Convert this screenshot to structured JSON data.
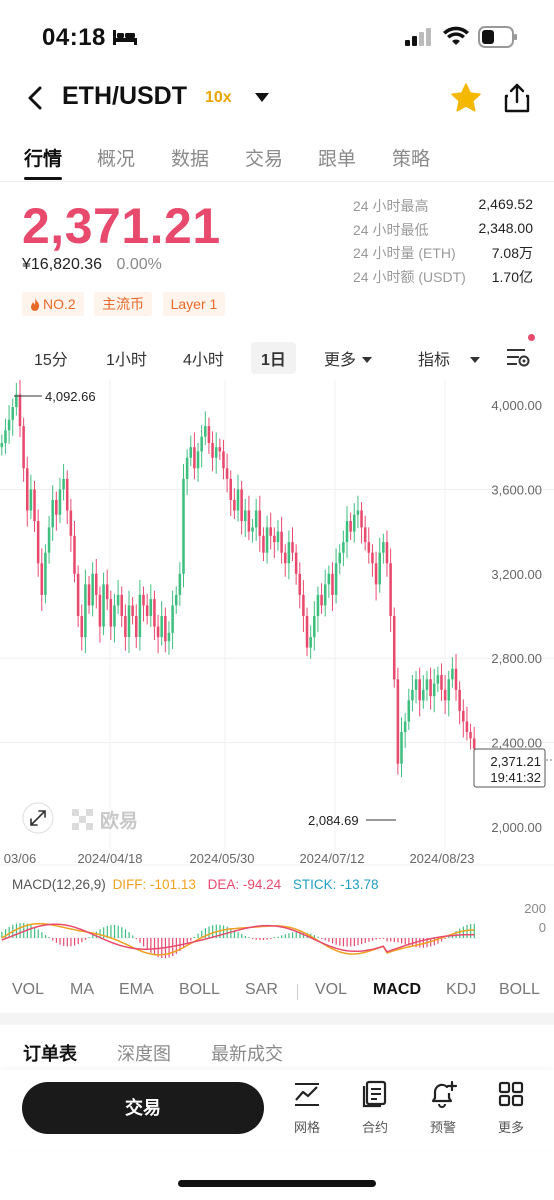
{
  "status_bar": {
    "time": "04:18"
  },
  "header": {
    "pair": "ETH/USDT",
    "leverage": "10x"
  },
  "main_tabs": [
    {
      "label": "行情",
      "active": true
    },
    {
      "label": "概况"
    },
    {
      "label": "数据"
    },
    {
      "label": "交易"
    },
    {
      "label": "跟单"
    },
    {
      "label": "策略"
    }
  ],
  "price": {
    "last": "2,371.21",
    "cny": "¥16,820.36",
    "change": "0.00%"
  },
  "stats": [
    {
      "label": "24 小时最高",
      "value": "2,469.52"
    },
    {
      "label": "24 小时最低",
      "value": "2,348.00"
    },
    {
      "label": "24 小时量 (ETH)",
      "value": "7.08万"
    },
    {
      "label": "24 小时额 (USDT)",
      "value": "1.70亿"
    }
  ],
  "tags": [
    "NO.2",
    "主流币",
    "Layer 1"
  ],
  "intervals": [
    {
      "label": "15分"
    },
    {
      "label": "1小时"
    },
    {
      "label": "4小时"
    },
    {
      "label": "1日",
      "active": true
    },
    {
      "label": "更多"
    },
    {
      "label": "指标"
    }
  ],
  "chart_data": {
    "type": "candlestick",
    "y_axis_labels": [
      "4,000.00",
      "3,600.00",
      "3,200.00",
      "2,800.00",
      "2,400.00",
      "2,000.00"
    ],
    "y_axis_values": [
      4000,
      3600,
      3200,
      2800,
      2400,
      2000
    ],
    "x_axis_labels": [
      "03/06",
      "2024/04/18",
      "2024/05/30",
      "2024/07/12",
      "2024/08/23"
    ],
    "high_annotation": "4,092.66",
    "low_annotation": "2,084.69",
    "last_price_label": "2,371.21",
    "countdown_label": "19:41:32",
    "watermark": "欧易",
    "up_color": "#3fbf7f",
    "down_color": "#e84a6e",
    "closes": [
      3820,
      3880,
      3930,
      3990,
      4050,
      3900,
      3700,
      3500,
      3600,
      3450,
      3250,
      3100,
      3300,
      3420,
      3550,
      3480,
      3600,
      3650,
      3500,
      3380,
      3200,
      3000,
      2900,
      3150,
      3050,
      3200,
      3100,
      2950,
      3150,
      3080,
      2950,
      3050,
      3100,
      3000,
      2900,
      3050,
      3000,
      2900,
      3100,
      3050,
      3000,
      3080,
      2950,
      2900,
      3000,
      2880,
      2920,
      3050,
      3100,
      3200,
      3650,
      3750,
      3800,
      3700,
      3780,
      3850,
      3900,
      3820,
      3750,
      3800,
      3780,
      3700,
      3650,
      3550,
      3500,
      3600,
      3450,
      3500,
      3400,
      3420,
      3500,
      3380,
      3300,
      3420,
      3380,
      3350,
      3400,
      3300,
      3250,
      3350,
      3300,
      3200,
      3100,
      3000,
      2850,
      2900,
      3000,
      3100,
      3050,
      3150,
      3200,
      3100,
      3250,
      3300,
      3350,
      3450,
      3400,
      3480,
      3500,
      3420,
      3350,
      3300,
      3250,
      3150,
      3300,
      3350,
      3250,
      3000,
      2700,
      2300,
      2450,
      2500,
      2600,
      2650,
      2700,
      2600,
      2650,
      2700,
      2620,
      2680,
      2720,
      2650,
      2600,
      2700,
      2750,
      2650,
      2550,
      2500,
      2450,
      2420,
      2371
    ]
  },
  "macd": {
    "params": "MACD(12,26,9)",
    "diff": "DIFF: -101.13",
    "dea": "DEA: -94.24",
    "stick": "STICK: -13.78",
    "axis_top": "200",
    "axis_zero": "0",
    "diff_color": "#f0a020",
    "dea_color": "#e84a6e",
    "stick_color": "#20a0c0"
  },
  "indicators_main": [
    "VOL",
    "MA",
    "EMA",
    "BOLL",
    "SAR"
  ],
  "indicators_sub": [
    {
      "label": "VOL"
    },
    {
      "label": "MACD",
      "active": true
    },
    {
      "label": "KDJ"
    },
    {
      "label": "BOLL"
    }
  ],
  "bottom_tabs": [
    {
      "label": "订单表",
      "active": true
    },
    {
      "label": "深度图"
    },
    {
      "label": "最新成交"
    }
  ],
  "action_bar": {
    "trade_label": "交易",
    "items": [
      {
        "label": "网格",
        "icon": "grid-chart-icon"
      },
      {
        "label": "合约",
        "icon": "contract-icon"
      },
      {
        "label": "预警",
        "icon": "alert-bell-icon"
      },
      {
        "label": "更多",
        "icon": "more-grid-icon"
      }
    ]
  }
}
